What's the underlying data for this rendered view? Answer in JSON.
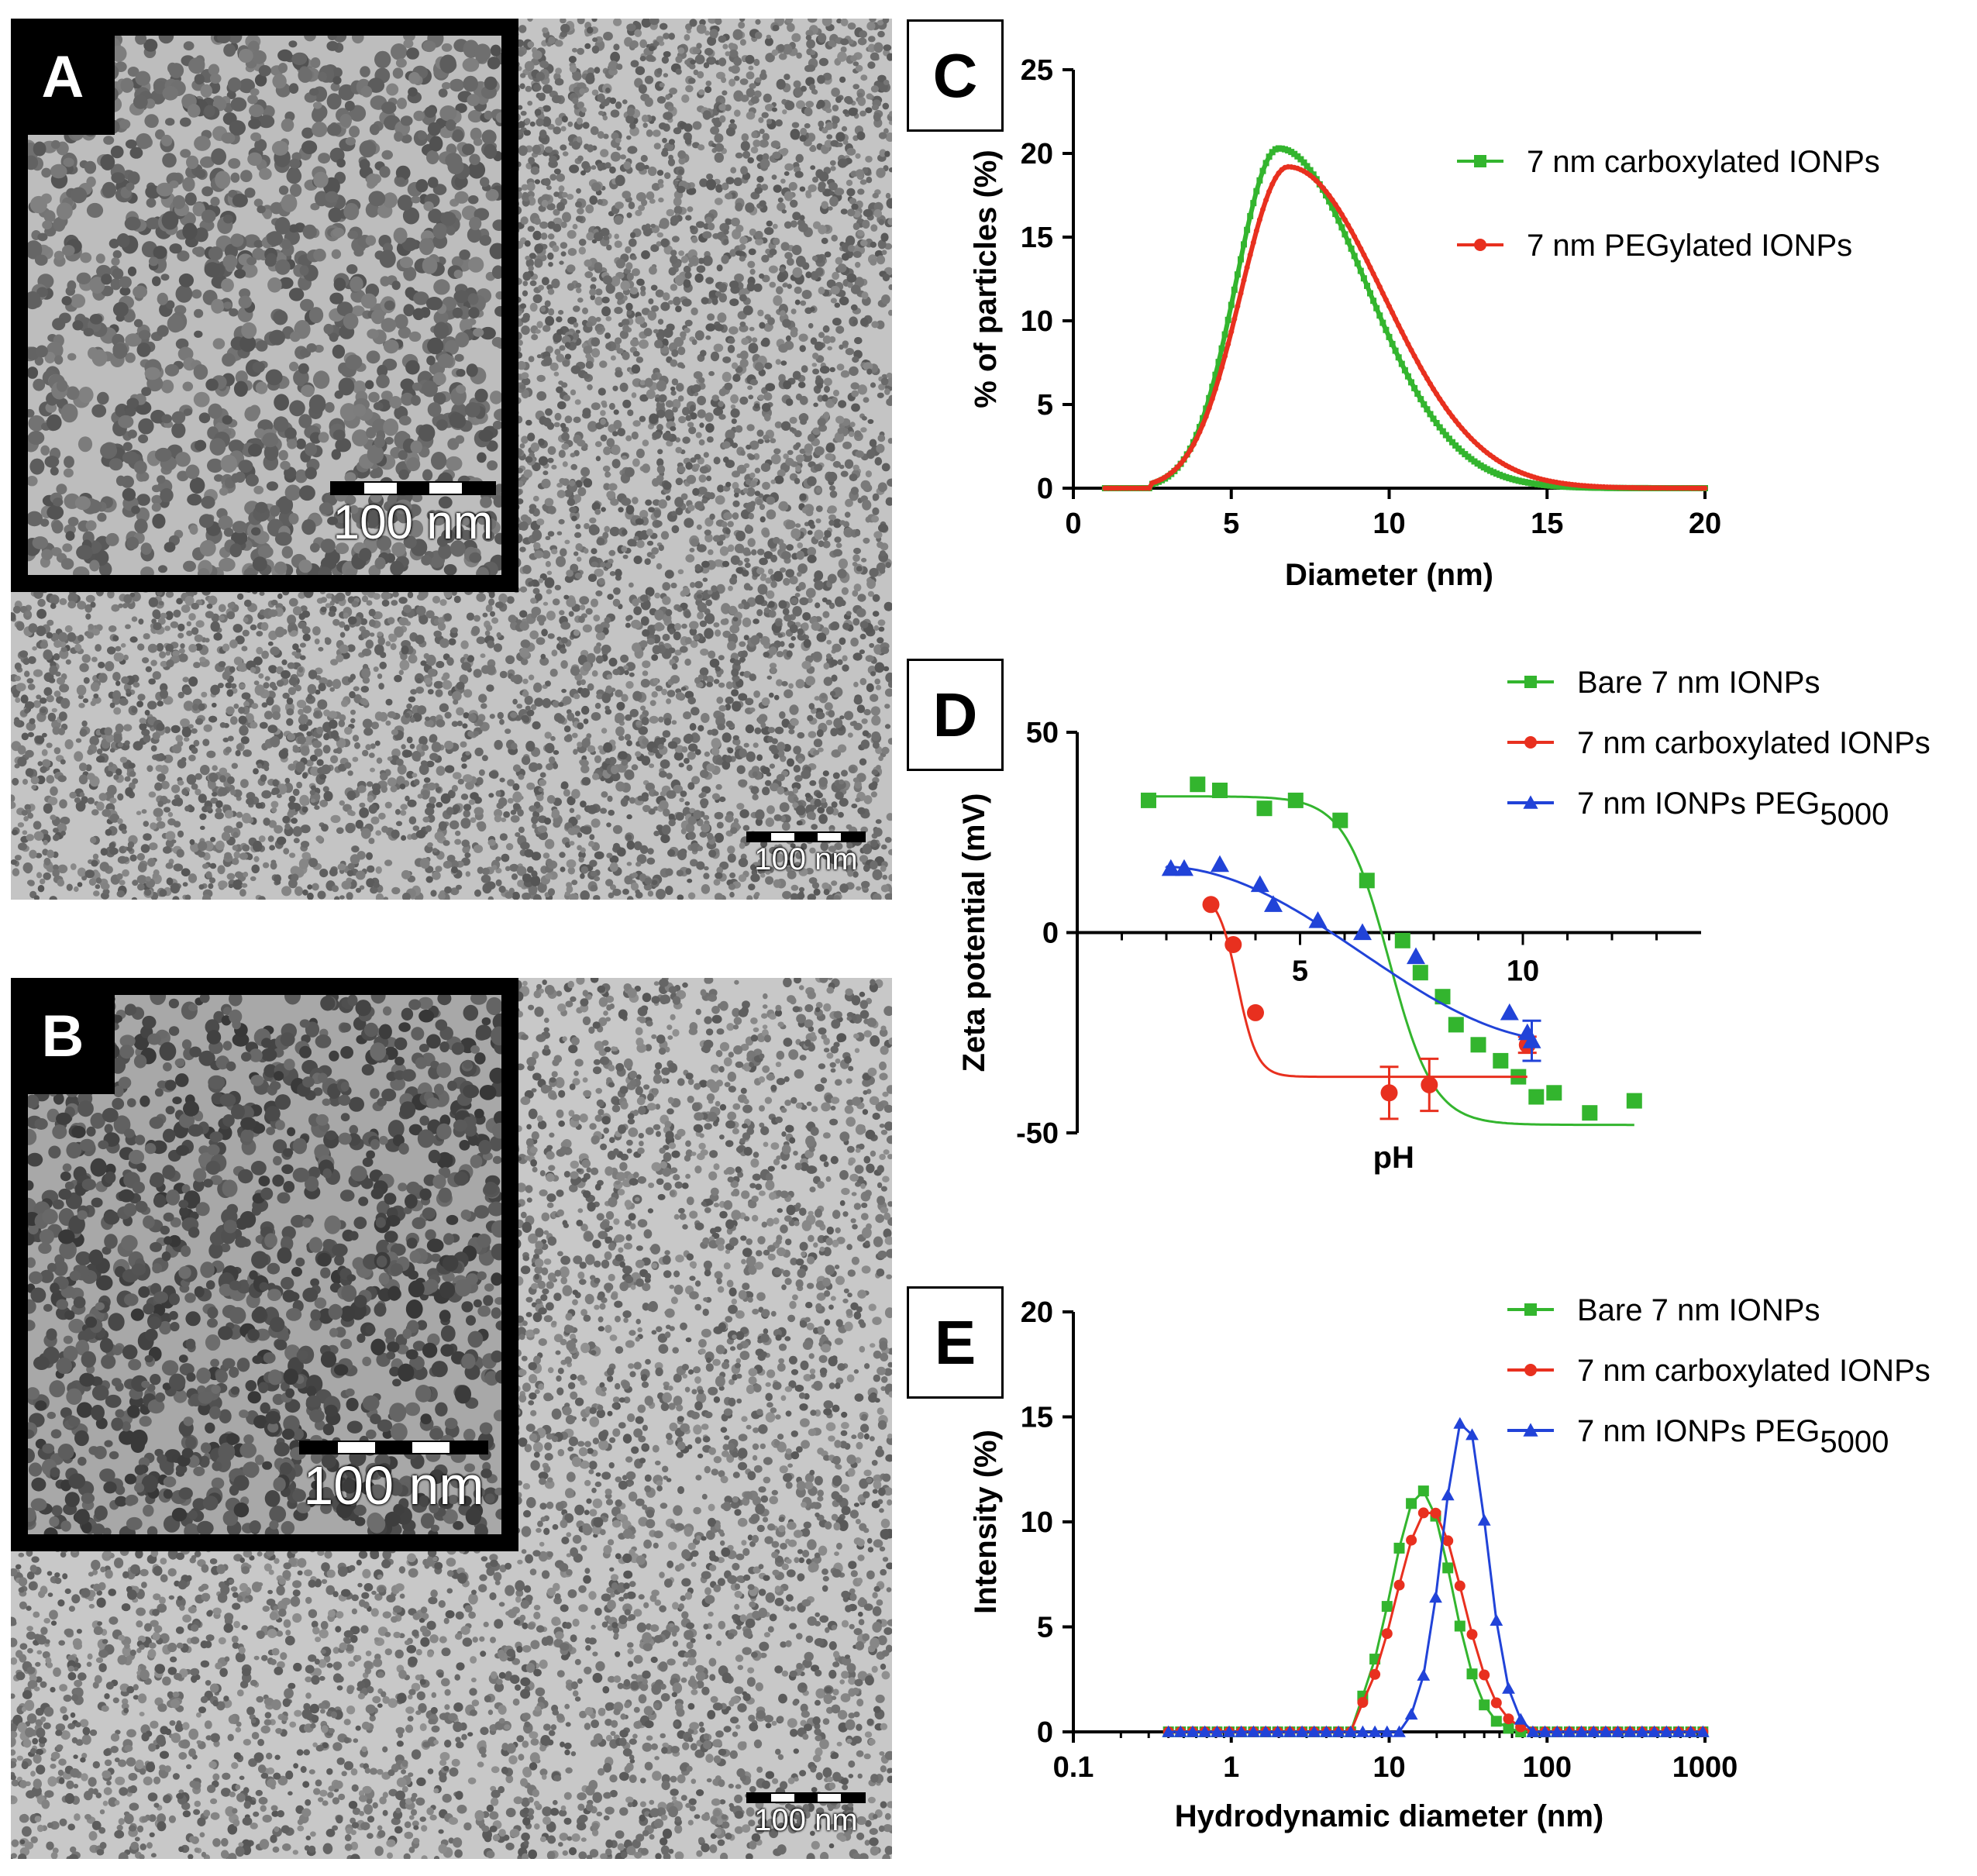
{
  "panels": {
    "A": {
      "letter": "A",
      "inset_scale_label": "100 nm",
      "main_scale_label": "100 nm"
    },
    "B": {
      "letter": "B",
      "inset_scale_label": "100 nm",
      "main_scale_label": "100 nm"
    }
  },
  "colors": {
    "green": "#33b52e",
    "red": "#e8301f",
    "blue": "#2143d8"
  },
  "chart_data": [
    {
      "panel": "C",
      "type": "line",
      "xlabel": "Diameter (nm)",
      "ylabel": "% of particles (%)",
      "xlim": [
        0,
        20
      ],
      "ylim": [
        0,
        25
      ],
      "xticks": [
        0,
        5,
        10,
        15,
        20
      ],
      "yticks": [
        0,
        5,
        10,
        15,
        20,
        25
      ],
      "legend": "top-right",
      "series": [
        {
          "name": "7 nm carboxylated IONPs",
          "color": "#33b52e",
          "marker": "square",
          "peak_x": 6.5,
          "peak_y": 20.3,
          "sigma_left": 1.35,
          "sigma_right": 2.75,
          "x_start": 1,
          "x_end": 20
        },
        {
          "name": "7 nm PEGylated IONPs",
          "color": "#e8301f",
          "marker": "circle",
          "peak_x": 6.8,
          "peak_y": 19.2,
          "sigma_left": 1.5,
          "sigma_right": 3.0,
          "x_start": 1,
          "x_end": 20
        }
      ]
    },
    {
      "panel": "D",
      "type": "scatter",
      "xlabel": "pH",
      "ylabel": "Zeta potential (mV)",
      "xlim": [
        0,
        14
      ],
      "ylim": [
        -50,
        50
      ],
      "xticks": [
        5,
        10
      ],
      "yticks": [
        -50,
        0,
        50
      ],
      "legend": "top-right",
      "series": [
        {
          "name": "Bare 7 nm IONPs",
          "color": "#33b52e",
          "marker": "square",
          "x": [
            1.6,
            2.7,
            3.2,
            4.2,
            4.9,
            5.9,
            6.5,
            7.3,
            7.7,
            8.2,
            8.5,
            9.0,
            9.5,
            9.9,
            10.3,
            10.7,
            11.5,
            12.5
          ],
          "y": [
            33,
            37,
            35.5,
            31,
            33,
            28,
            13,
            -2,
            -10,
            -16,
            -23,
            -28,
            -32,
            -36,
            -41,
            -40,
            -45,
            -42
          ],
          "fit": {
            "top": 34,
            "bottom": -48,
            "x0": 7.0,
            "slope": 0.5,
            "x_start": 1.5,
            "x_end": 12.5
          }
        },
        {
          "name": "7 nm carboxylated IONPs",
          "color": "#e8301f",
          "marker": "circle",
          "x": [
            3.0,
            3.5,
            4.0,
            7.0,
            7.9,
            10.1
          ],
          "y": [
            7,
            -3,
            -20,
            -40,
            -38,
            -28
          ],
          "err": [
            0,
            0,
            0,
            6.5,
            6.5,
            2
          ],
          "fit": {
            "top": 10,
            "bottom": -36,
            "x0": 3.6,
            "slope": 0.22,
            "x_start": 3.0,
            "x_end": 10.1
          }
        },
        {
          "name": "7 nm IONPs PEG5000",
          "color": "#2143d8",
          "marker": "triangle",
          "x": [
            2.1,
            2.4,
            3.2,
            4.1,
            4.4,
            5.4,
            6.4,
            7.6,
            9.7,
            10.1,
            10.2
          ],
          "y": [
            16,
            16,
            17,
            12,
            7,
            3,
            0,
            -6,
            -20,
            -25,
            -27
          ],
          "err": [
            0,
            0,
            0,
            0,
            0,
            0,
            0,
            0,
            0,
            0,
            5
          ],
          "fit": {
            "type": "linear",
            "x_start": 2.0,
            "x_end": 10.2,
            "y_start": 16.5,
            "y_end": -27
          }
        }
      ]
    },
    {
      "panel": "E",
      "type": "line",
      "xscale": "log",
      "xlabel": "Hydrodynamic diameter (nm)",
      "ylabel": "Intensity (%)",
      "xlim": [
        0.1,
        1000
      ],
      "ylim": [
        0,
        20
      ],
      "xticks": [
        0.1,
        1,
        10,
        100,
        1000
      ],
      "xtick_labels": [
        "0.1",
        "1",
        "10",
        "100",
        "1000"
      ],
      "yticks": [
        0,
        5,
        10,
        15,
        20
      ],
      "legend": "top-right",
      "series": [
        {
          "name": "Bare 7 nm IONPs",
          "color": "#33b52e",
          "marker": "square",
          "peak_x": 16,
          "peak_y": 11.5,
          "log_sigma": 0.19,
          "onset": 6,
          "offset": 60
        },
        {
          "name": "7 nm carboxylated IONPs",
          "color": "#e8301f",
          "marker": "circle",
          "peak_x": 18,
          "peak_y": 10.6,
          "log_sigma": 0.21,
          "onset": 6,
          "offset": 70
        },
        {
          "name": "7 nm IONPs PEG5000",
          "color": "#2143d8",
          "marker": "triangle",
          "peak_x": 30,
          "peak_y": 15,
          "log_sigma": 0.14,
          "onset": 13,
          "offset": 70
        }
      ],
      "x_points_from": 0.4,
      "x_points_to": 1000,
      "points_per_decade": 13
    }
  ],
  "legends": {
    "C": [
      "7 nm carboxylated IONPs",
      "7 nm PEGylated IONPs"
    ],
    "D": {
      "items": [
        "Bare 7 nm IONPs",
        "7 nm carboxylated IONPs"
      ],
      "peg_base": "7 nm IONPs PEG",
      "peg_sub": "5000"
    },
    "E": {
      "items": [
        "Bare 7 nm IONPs",
        "7 nm carboxylated IONPs"
      ],
      "peg_base": "7 nm IONPs PEG",
      "peg_sub": "5000"
    }
  }
}
